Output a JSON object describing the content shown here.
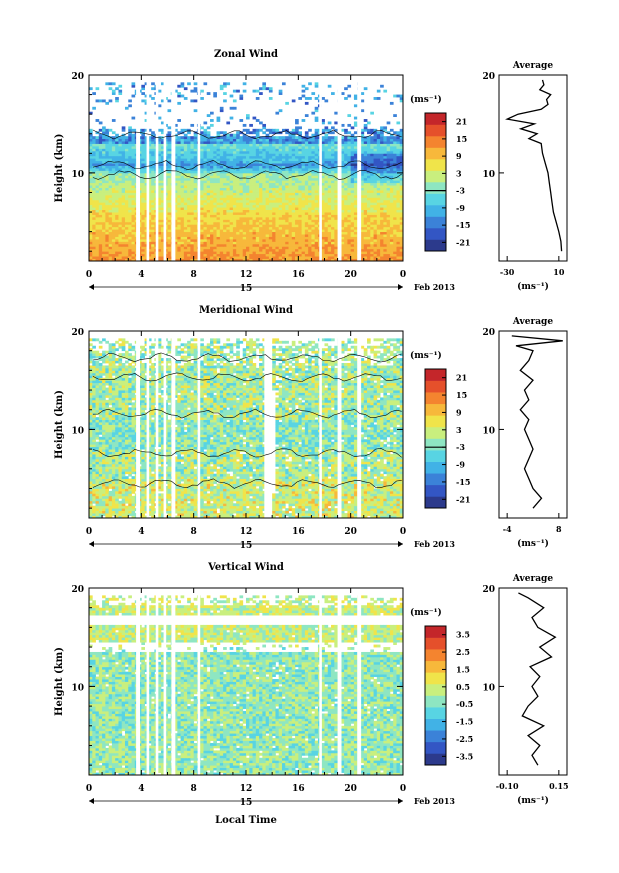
{
  "figure": {
    "xlabel": "Local Time",
    "date_label": "Feb 2013",
    "day_label": "15",
    "ylabel": "Height (km)"
  },
  "chart_data": [
    {
      "type": "heatmap",
      "title": "Zonal Wind",
      "x_ticks": [
        "0",
        "4",
        "8",
        "12",
        "16",
        "20",
        "0"
      ],
      "xlim": [
        0,
        24
      ],
      "y_ticks": [
        "10",
        "20"
      ],
      "ylim": [
        1,
        20
      ],
      "colorbar": {
        "unit": "(ms⁻¹)",
        "ticks": [
          "21",
          "15",
          "9",
          "3",
          "-3",
          "-9",
          "-15",
          "-21"
        ],
        "range": [
          -24,
          24
        ]
      },
      "gaps_hours": [
        [
          3.6,
          3.9
        ],
        [
          4.4,
          4.6
        ],
        [
          5.1,
          5.3
        ],
        [
          5.7,
          5.9
        ],
        [
          6.3,
          6.6
        ],
        [
          8.3,
          8.5
        ],
        [
          17.6,
          17.8
        ],
        [
          19.0,
          19.3
        ],
        [
          20.5,
          20.8
        ]
      ],
      "average": {
        "title": "Average",
        "unit": "(ms⁻¹)",
        "x_ticks": [
          "-30",
          "10"
        ],
        "xlim": [
          -36,
          14
        ],
        "y_ticks": [
          "10",
          "20"
        ],
        "height_km": [
          2,
          3,
          4,
          5,
          6,
          7,
          8,
          9,
          10,
          11,
          12,
          13,
          13.5,
          14,
          14.5,
          15,
          15.5,
          16,
          16.5,
          17,
          17.5,
          18,
          18.5,
          19,
          19.5
        ],
        "wind": [
          10,
          9.5,
          8,
          6,
          4,
          3,
          2,
          1,
          0,
          -2,
          -4,
          -5,
          -14,
          -8,
          -20,
          -10,
          -30,
          -22,
          -5,
          0,
          -1,
          2,
          -6,
          -3,
          -4
        ]
      }
    },
    {
      "type": "heatmap",
      "title": "Meridional Wind",
      "x_ticks": [
        "0",
        "4",
        "8",
        "12",
        "16",
        "20",
        "0"
      ],
      "xlim": [
        0,
        24
      ],
      "y_ticks": [
        "10",
        "20"
      ],
      "ylim": [
        1,
        20
      ],
      "colorbar": {
        "unit": "(ms⁻¹)",
        "ticks": [
          "21",
          "15",
          "9",
          "3",
          "-3",
          "-9",
          "-15",
          "-21"
        ],
        "range": [
          -24,
          24
        ]
      },
      "gaps_hours": [
        [
          3.6,
          3.9
        ],
        [
          4.4,
          4.6
        ],
        [
          5.1,
          5.3
        ],
        [
          5.7,
          5.9
        ],
        [
          6.3,
          6.6
        ],
        [
          8.3,
          8.5
        ],
        [
          13.4,
          14.0
        ],
        [
          17.6,
          17.8
        ],
        [
          19.0,
          19.3
        ],
        [
          20.5,
          20.8
        ]
      ],
      "average": {
        "title": "Average",
        "unit": "(ms⁻¹)",
        "x_ticks": [
          "-4",
          "8"
        ],
        "xlim": [
          -6,
          10
        ],
        "y_ticks": [
          "10",
          "20"
        ],
        "height_km": [
          2,
          3,
          4,
          5,
          6,
          7,
          8,
          9,
          10,
          11,
          12,
          13,
          14,
          15,
          16,
          17,
          18,
          18.5,
          19,
          19.5
        ],
        "wind": [
          2,
          4,
          2,
          1,
          0,
          1,
          2,
          1,
          0,
          1,
          -1,
          1,
          0,
          2,
          -1,
          1,
          2,
          -2,
          9,
          -3
        ]
      }
    },
    {
      "type": "heatmap",
      "title": "Vertical Wind",
      "x_ticks": [
        "0",
        "4",
        "8",
        "12",
        "16",
        "20",
        "0"
      ],
      "xlim": [
        0,
        24
      ],
      "y_ticks": [
        "10",
        "20"
      ],
      "ylim": [
        1,
        20
      ],
      "colorbar": {
        "unit": "(ms⁻¹)",
        "ticks": [
          "3.5",
          "2.5",
          "1.5",
          "0.5",
          "-0.5",
          "-1.5",
          "-2.5",
          "-3.5"
        ],
        "range": [
          -4,
          4
        ]
      },
      "gaps_hours": [
        [
          3.6,
          3.9
        ],
        [
          4.4,
          4.6
        ],
        [
          5.1,
          5.3
        ],
        [
          5.7,
          5.9
        ],
        [
          6.3,
          6.6
        ],
        [
          8.3,
          8.5
        ],
        [
          17.6,
          17.8
        ],
        [
          19.0,
          19.3
        ],
        [
          20.5,
          20.8
        ]
      ],
      "average": {
        "title": "Average",
        "unit": "(ms⁻¹)",
        "x_ticks": [
          "-0.10",
          "0.15"
        ],
        "xlim": [
          -0.15,
          0.2
        ],
        "y_ticks": [
          "10",
          "20"
        ],
        "height_km": [
          2,
          3,
          4,
          5,
          6,
          7,
          8,
          9,
          10,
          11,
          12,
          13,
          14,
          15,
          16,
          17,
          18,
          19,
          19.5
        ],
        "wind": [
          0.05,
          0.02,
          0.06,
          0.0,
          0.08,
          -0.03,
          0.0,
          0.05,
          0.02,
          0.06,
          0.01,
          0.12,
          0.06,
          0.14,
          0.05,
          0.02,
          0.08,
          0.0,
          -0.05
        ]
      }
    }
  ]
}
